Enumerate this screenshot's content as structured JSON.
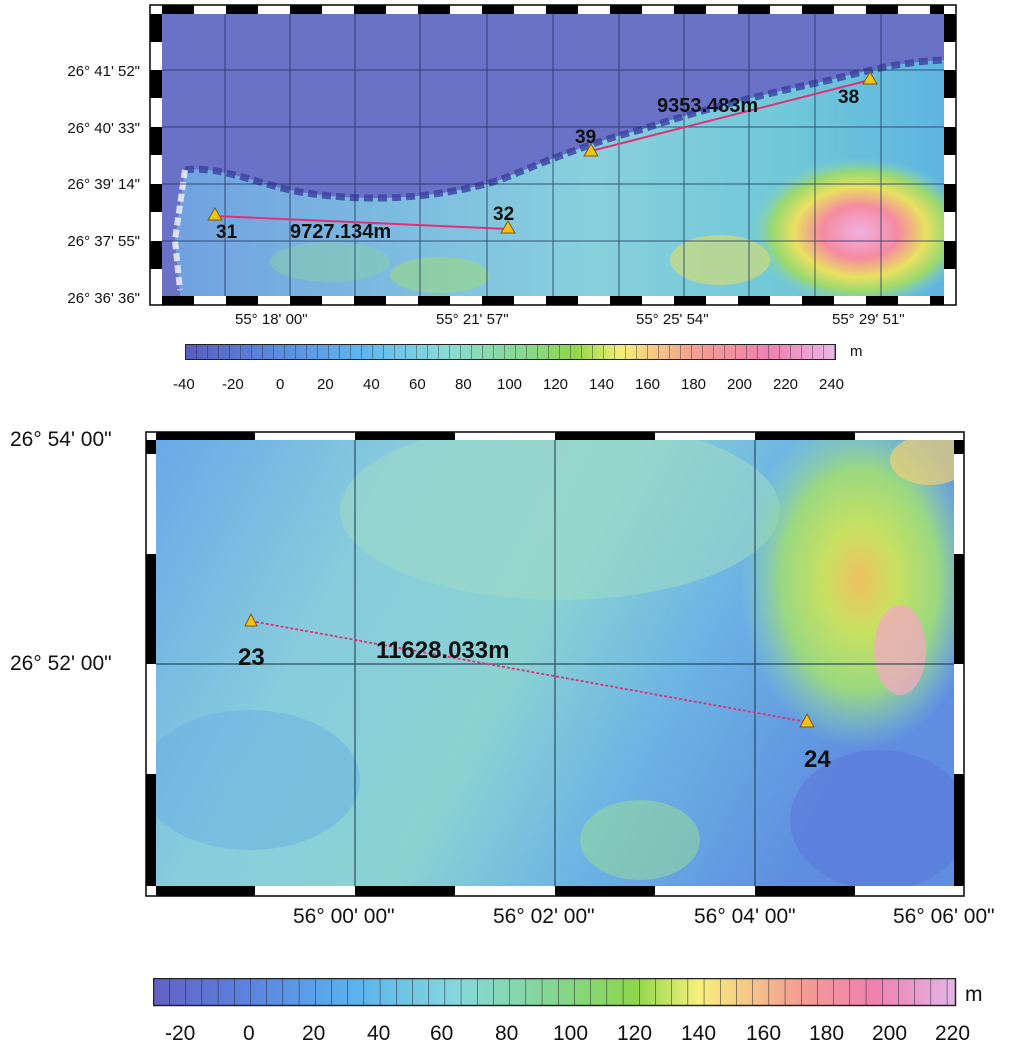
{
  "panels": [
    {
      "id": "top",
      "lat_labels": [
        "26° 41' 52\"",
        "26° 40' 33\"",
        "26° 39' 14\"",
        "26° 37' 55\"",
        "26° 36' 36\""
      ],
      "lon_labels": [
        "55° 18' 00\"",
        "55° 21' 57\"",
        "55° 25' 54\"",
        "55° 29' 51\""
      ],
      "stations": [
        "31",
        "32",
        "39",
        "38"
      ],
      "distances": [
        "9727.134m",
        "9353.483m"
      ],
      "colorbar": {
        "unit": "m",
        "ticks": [
          "-40",
          "-20",
          "0",
          "20",
          "40",
          "60",
          "80",
          "100",
          "120",
          "140",
          "160",
          "180",
          "200",
          "220",
          "240"
        ]
      }
    },
    {
      "id": "bottom",
      "lat_labels": [
        "26° 54' 00\"",
        "26° 52' 00\""
      ],
      "lon_labels": [
        "56° 00' 00\"",
        "56° 02' 00\"",
        "56° 04' 00\"",
        "56° 06' 00\""
      ],
      "stations": [
        "23",
        "24"
      ],
      "distances": [
        "11628.033m"
      ],
      "colorbar": {
        "unit": "m",
        "ticks": [
          "-20",
          "0",
          "20",
          "40",
          "60",
          "80",
          "100",
          "120",
          "140",
          "160",
          "180",
          "200",
          "220"
        ]
      }
    }
  ],
  "colors": {
    "land": "#6a72c8",
    "route_line": "#e0307a",
    "marker_fill": "#f2c21a",
    "marker_stroke": "#7a5a10"
  }
}
